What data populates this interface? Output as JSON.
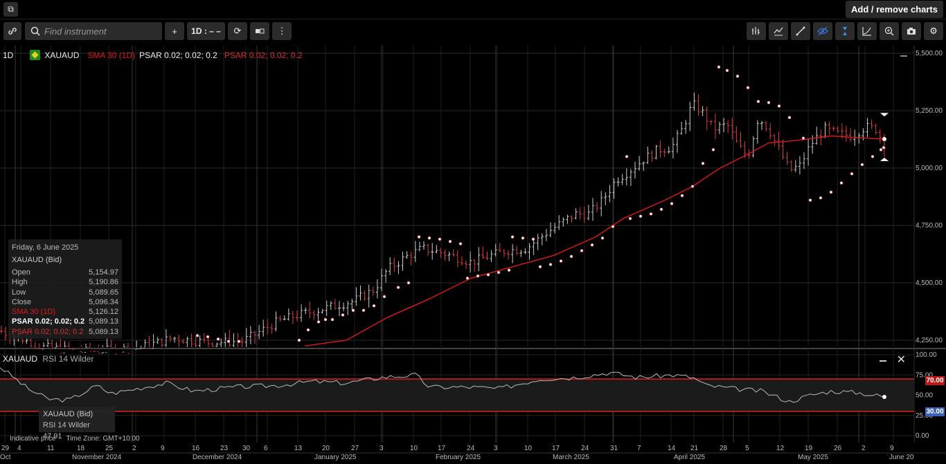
{
  "topbar": {
    "add_remove_label": "Add / remove charts",
    "popout_icon": "popout-icon"
  },
  "toolbar": {
    "link_icon": "link-icon",
    "search_placeholder": "Find instrument",
    "plus_label": "+",
    "interval_label": "1D : – –",
    "right_icons": [
      "bar-chart-icon",
      "indicator-icon",
      "draw-line-icon",
      "hide-icon",
      "cursor-icon",
      "curve-icon",
      "zoom-icon",
      "camera-icon",
      "settings-icon"
    ]
  },
  "legend": {
    "interval": "1D",
    "symbol": "XAUAUD",
    "sma": "SMA 30 (1D)",
    "psar1": "PSAR 0.02; 0.02; 0.2",
    "psar2": "PSAR 0.02; 0.02; 0.2"
  },
  "info_panel": {
    "date": "Friday, 6 June 2025",
    "title": "XAUAUD (Bid)",
    "rows": [
      {
        "label": "Open",
        "value": "5,154.97"
      },
      {
        "label": "High",
        "value": "5,190.86"
      },
      {
        "label": "Low",
        "value": "5,089.65"
      },
      {
        "label": "Close",
        "value": "5,096.34"
      },
      {
        "label": "SMA 30 (1D)",
        "value": "5,126.12"
      },
      {
        "label": "PSAR 0.02; 0.02; 0.2",
        "value": "5,089.13"
      },
      {
        "label": "PSAR 0.02; 0.02; 0.2",
        "value": "5,089.13"
      }
    ]
  },
  "rsi": {
    "legend_symbol": "XAUAUD",
    "legend_name": "RSI 14 Wilder",
    "info_title": "XAUAUD (Bid)",
    "info_value": "RSI 14 Wilder 47.91",
    "upper_tag": "70.00",
    "lower_tag": "30.00"
  },
  "footer": {
    "indicative": "Indicative price",
    "timezone": "Time Zone: GMT+10:00"
  },
  "colors": {
    "up": "#d0d0d0",
    "down": "#e23b3b",
    "sma": "#e01818",
    "band": "#e02020"
  },
  "price_axis": [
    "5,500.00",
    "5,250.00",
    "5,000.00",
    "4,750.00",
    "4,500.00",
    "4,250.00"
  ],
  "rsi_axis": [
    "100.00",
    "75.00",
    "50.00",
    "25.00",
    "0.00"
  ],
  "day_ticks": [
    "29",
    "4",
    "11",
    "18",
    "25",
    "2",
    "9",
    "16",
    "23",
    "30",
    "6",
    "13",
    "20",
    "27",
    "3",
    "10",
    "17",
    "24",
    "3",
    "10",
    "17",
    "24",
    "31",
    "7",
    "14",
    "21",
    "28",
    "5",
    "12",
    "19",
    "26",
    "2",
    "9"
  ],
  "month_labels": [
    "Oct",
    "November 2024",
    "December 2024",
    "January 2025",
    "February 2025",
    "March 2025",
    "April 2025",
    "May 2025",
    "June 20"
  ],
  "chart_data": {
    "type": "candlestick-ohlc",
    "instrument": "XAUAUD",
    "interval": "1D",
    "ylim": [
      4230,
      5530
    ],
    "series": [
      {
        "name": "SMA 30 (1D)",
        "last": 5126.12
      },
      {
        "name": "PSAR 0.02; 0.02; 0.2",
        "last": 5089.13
      }
    ],
    "last_bar": {
      "date": "Friday, 6 June 2025",
      "open": 5154.97,
      "high": 5190.86,
      "low": 5089.65,
      "close": 5096.34
    },
    "rsi": {
      "name": "RSI 14 Wilder",
      "last": 47.91,
      "upper": 70,
      "lower": 30,
      "ylim": [
        0,
        100
      ]
    }
  }
}
